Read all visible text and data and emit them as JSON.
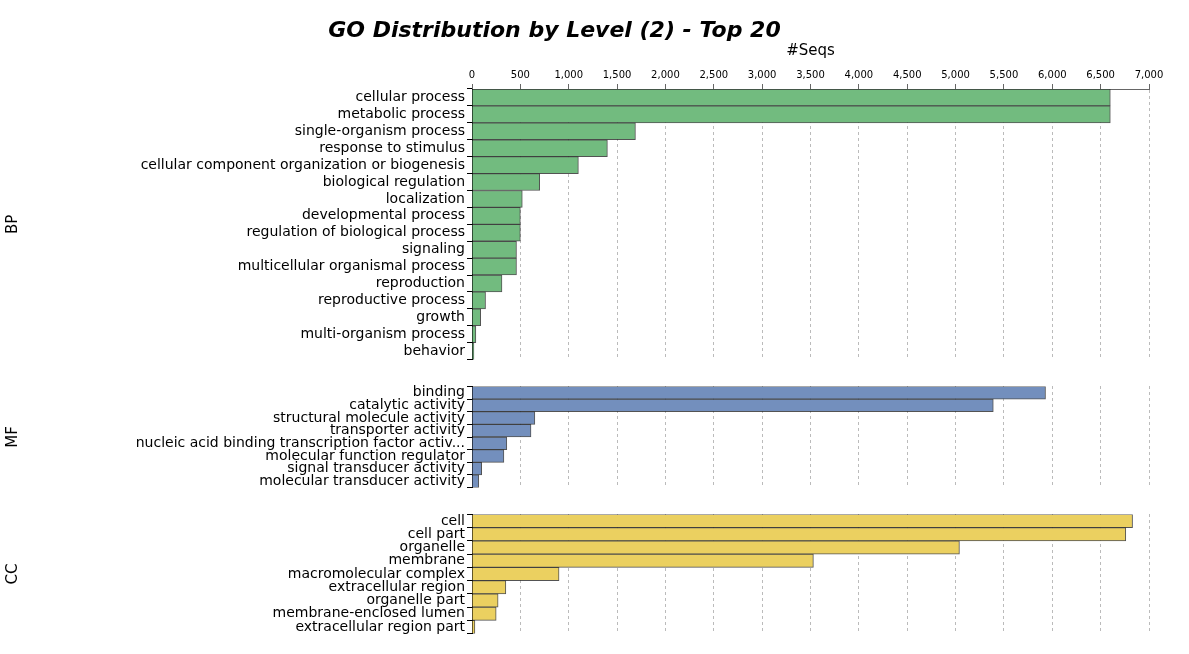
{
  "chart_data": [
    {
      "type": "bar",
      "orientation": "horizontal",
      "title": "GO Distribution by Level (2) - Top 20",
      "xlabel": "#Seqs",
      "ylabel": "BP",
      "color": "#72bb7f",
      "grid": "x",
      "xlim": [
        0,
        7000
      ],
      "xticks": [
        0,
        500,
        {
          "value": 1000,
          "label": "1,000"
        },
        {
          "value": 1500,
          "label": "1,500"
        },
        {
          "value": 2000,
          "label": "2,000"
        },
        {
          "value": 2500,
          "label": "2,500"
        },
        {
          "value": 3000,
          "label": "3,000"
        },
        {
          "value": 3500,
          "label": "3,500"
        },
        {
          "value": 4000,
          "label": "4,000"
        },
        {
          "value": 4500,
          "label": "4,500"
        },
        {
          "value": 5000,
          "label": "5,000"
        },
        {
          "value": 5500,
          "label": "5,500"
        },
        {
          "value": 6000,
          "label": "6,000"
        },
        {
          "value": 6500,
          "label": "6,500"
        },
        {
          "value": 7000,
          "label": "7,000"
        }
      ],
      "categories": [
        "cellular process",
        "metabolic process",
        "single-organism process",
        "response to stimulus",
        "cellular component organization or biogenesis",
        "biological regulation",
        "localization",
        "developmental process",
        "regulation of biological process",
        "signaling",
        "multicellular organismal process",
        "reproduction",
        "reproductive process",
        "growth",
        "multi-organism process",
        "behavior"
      ],
      "values": [
        6600,
        6600,
        1690,
        1400,
        1100,
        700,
        520,
        500,
        500,
        460,
        460,
        310,
        140,
        90,
        40,
        20
      ]
    },
    {
      "type": "bar",
      "orientation": "horizontal",
      "ylabel": "MF",
      "color": "#738fbd",
      "grid": "x",
      "xlim": [
        0,
        7000
      ],
      "tick_labels": "y",
      "xticks": [
        0,
        500,
        1000,
        1500,
        2000,
        2500,
        3000,
        3500,
        4000,
        4500,
        5000,
        5500,
        6000,
        6500,
        7000
      ],
      "categories": [
        "binding",
        "catalytic activity",
        "structural molecule activity",
        "transporter activity",
        "nucleic acid binding transcription factor activ...",
        "molecular function regulator",
        "signal transducer activity",
        "molecular transducer activity"
      ],
      "values": [
        5930,
        5390,
        650,
        610,
        360,
        330,
        100,
        70
      ]
    },
    {
      "type": "bar",
      "orientation": "horizontal",
      "ylabel": "CC",
      "color": "#ebd060",
      "grid": "x",
      "xlim": [
        0,
        7000
      ],
      "tick_labels": "y",
      "xticks": [
        0,
        500,
        1000,
        1500,
        2000,
        2500,
        3000,
        3500,
        4000,
        4500,
        5000,
        5500,
        6000,
        6500,
        7000
      ],
      "categories": [
        "cell",
        "cell part",
        "organelle",
        "membrane",
        "macromolecular complex",
        "extracellular region",
        "organelle part",
        "membrane-enclosed lumen",
        "extracellular region part"
      ],
      "values": [
        6830,
        6760,
        5040,
        3530,
        900,
        350,
        270,
        250,
        30
      ]
    }
  ]
}
